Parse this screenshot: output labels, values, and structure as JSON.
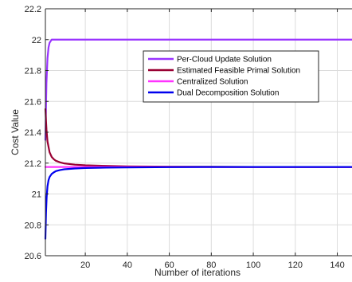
{
  "chart_data": {
    "type": "line",
    "xlabel": "Number of iterations",
    "ylabel": "Cost Value",
    "xlim": [
      1,
      147
    ],
    "ylim": [
      20.6,
      22.2
    ],
    "xticks": [
      20,
      40,
      60,
      80,
      100,
      120,
      140
    ],
    "yticks": [
      20.6,
      20.8,
      21,
      21.2,
      21.4,
      21.6,
      21.8,
      22,
      22.2
    ],
    "xtick_labels": [
      "20",
      "40",
      "60",
      "80",
      "100",
      "120",
      "140"
    ],
    "ytick_labels": [
      "20.6",
      "20.8",
      "21",
      "21.2",
      "21.4",
      "21.6",
      "21.8",
      "22",
      "22.2"
    ],
    "grid": true,
    "legend_position": "upper-center",
    "series": [
      {
        "name": "Per-Cloud Update Solution",
        "color": "#9933ff",
        "x": [
          1,
          1.5,
          2,
          2.5,
          3,
          3.5,
          4,
          5,
          6,
          8,
          10,
          20,
          40,
          80,
          147
        ],
        "y": [
          21.35,
          21.72,
          21.88,
          21.95,
          21.98,
          21.99,
          22.0,
          22.0,
          22.0,
          22.0,
          22.0,
          22.0,
          22.0,
          22.0,
          22.0
        ]
      },
      {
        "name": "Estimated Feasible Primal Solution",
        "color": "#990033",
        "x": [
          1,
          1.5,
          2,
          3,
          4,
          5,
          6,
          8,
          10,
          15,
          20,
          30,
          40,
          60,
          80,
          100,
          147
        ],
        "y": [
          21.55,
          21.42,
          21.34,
          21.27,
          21.24,
          21.225,
          21.215,
          21.205,
          21.198,
          21.19,
          21.186,
          21.182,
          21.179,
          21.177,
          21.176,
          21.175,
          21.175
        ]
      },
      {
        "name": "Centralized Solution",
        "color": "#ff33ff",
        "x": [
          1,
          147
        ],
        "y": [
          21.175,
          21.175
        ]
      },
      {
        "name": "Dual Decomposition Solution",
        "color": "#0000ee",
        "x": [
          1,
          1.3,
          1.6,
          2,
          2.5,
          3,
          4,
          5,
          6,
          8,
          10,
          15,
          20,
          30,
          40,
          60,
          80,
          147
        ],
        "y": [
          20.71,
          20.88,
          20.98,
          21.05,
          21.09,
          21.11,
          21.13,
          21.14,
          21.148,
          21.155,
          21.16,
          21.165,
          21.168,
          21.171,
          21.172,
          21.174,
          21.175,
          21.175
        ]
      }
    ]
  }
}
